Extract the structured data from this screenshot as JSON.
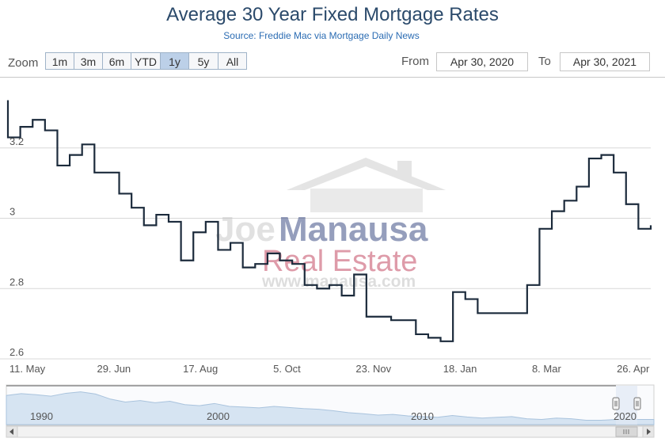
{
  "header": {
    "title": "Average 30 Year Fixed Mortgage Rates",
    "subtitle": "Source: Freddie Mac via Mortgage Daily News"
  },
  "zoom": {
    "label": "Zoom",
    "buttons": [
      "1m",
      "3m",
      "6m",
      "YTD",
      "1y",
      "5y",
      "All"
    ],
    "active": "1y"
  },
  "range": {
    "from_label": "From",
    "from_value": "Apr 30, 2020",
    "to_label": "To",
    "to_value": "Apr 30, 2021"
  },
  "watermark": {
    "line1a": "Joe",
    "line1b": "Manausa",
    "line2": "Real Estate",
    "line3": "www.manausa.com"
  },
  "navigator": {
    "year_labels": [
      "1990",
      "2000",
      "2010",
      "2020"
    ]
  },
  "colors": {
    "series": "#1c2b3c",
    "grid": "#d8d8d8",
    "navigator_fill": "#d6e4f2",
    "navigator_line": "#a9c3dd",
    "accent": "#2b6cb3"
  },
  "chart_data": {
    "type": "line",
    "step": true,
    "xlabel": "",
    "ylabel": "",
    "ylim": [
      2.6,
      3.4
    ],
    "y_ticks": [
      "3.2",
      "3",
      "2.8",
      "2.6"
    ],
    "x_tick_labels": [
      "11. May",
      "29. Jun",
      "17. Aug",
      "5. Oct",
      "23. Nov",
      "18. Jan",
      "8. Mar",
      "26. Apr"
    ],
    "x": [
      "2020-04-30",
      "2020-05-07",
      "2020-05-14",
      "2020-05-21",
      "2020-05-28",
      "2020-06-04",
      "2020-06-11",
      "2020-06-18",
      "2020-06-25",
      "2020-07-02",
      "2020-07-09",
      "2020-07-16",
      "2020-07-23",
      "2020-07-30",
      "2020-08-06",
      "2020-08-13",
      "2020-08-20",
      "2020-08-27",
      "2020-09-03",
      "2020-09-10",
      "2020-09-17",
      "2020-09-24",
      "2020-10-01",
      "2020-10-08",
      "2020-10-15",
      "2020-10-22",
      "2020-10-29",
      "2020-11-05",
      "2020-11-12",
      "2020-11-19",
      "2020-11-26",
      "2020-12-03",
      "2020-12-10",
      "2020-12-17",
      "2020-12-24",
      "2020-12-31",
      "2021-01-07",
      "2021-01-14",
      "2021-01-21",
      "2021-01-28",
      "2021-02-04",
      "2021-02-11",
      "2021-02-18",
      "2021-02-25",
      "2021-03-04",
      "2021-03-11",
      "2021-03-18",
      "2021-03-25",
      "2021-04-01",
      "2021-04-08",
      "2021-04-15",
      "2021-04-22",
      "2021-04-29"
    ],
    "series": [
      {
        "values": [
          3.23,
          3.26,
          3.28,
          3.25,
          3.15,
          3.18,
          3.21,
          3.13,
          3.13,
          3.07,
          3.03,
          2.98,
          3.01,
          2.99,
          2.88,
          2.96,
          2.99,
          2.91,
          2.93,
          2.86,
          2.87,
          2.9,
          2.88,
          2.87,
          2.81,
          2.8,
          2.81,
          2.78,
          2.84,
          2.72,
          2.72,
          2.71,
          2.71,
          2.67,
          2.66,
          2.65,
          2.79,
          2.77,
          2.73,
          2.73,
          2.73,
          2.73,
          2.81,
          2.97,
          3.02,
          3.05,
          3.09,
          3.17,
          3.18,
          3.13,
          3.04,
          2.97,
          2.98
        ]
      }
    ],
    "navigator_range": [
      "1986",
      "2021"
    ]
  }
}
